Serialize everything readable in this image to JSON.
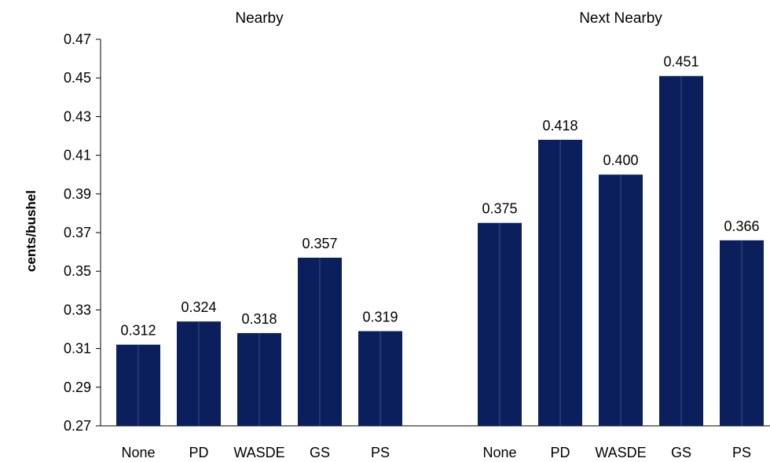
{
  "chart_data": {
    "type": "bar",
    "ylabel": "cents/bushel",
    "ylim": [
      0.27,
      0.47
    ],
    "yticks": [
      "0.27",
      "0.29",
      "0.31",
      "0.33",
      "0.35",
      "0.37",
      "0.39",
      "0.41",
      "0.43",
      "0.45",
      "0.47"
    ],
    "grid": false,
    "bar_color": "#0a1f5c",
    "groups": [
      {
        "title": "Nearby",
        "categories": [
          "None",
          "PD",
          "WASDE",
          "GS",
          "PS"
        ],
        "values": [
          0.312,
          0.324,
          0.318,
          0.357,
          0.319
        ],
        "labels": [
          "0.312",
          "0.324",
          "0.318",
          "0.357",
          "0.319"
        ]
      },
      {
        "title": "Next Nearby",
        "categories": [
          "None",
          "PD",
          "WASDE",
          "GS",
          "PS"
        ],
        "values": [
          0.375,
          0.418,
          0.4,
          0.451,
          0.366
        ],
        "labels": [
          "0.375",
          "0.418",
          "0.400",
          "0.451",
          "0.366"
        ]
      }
    ]
  }
}
